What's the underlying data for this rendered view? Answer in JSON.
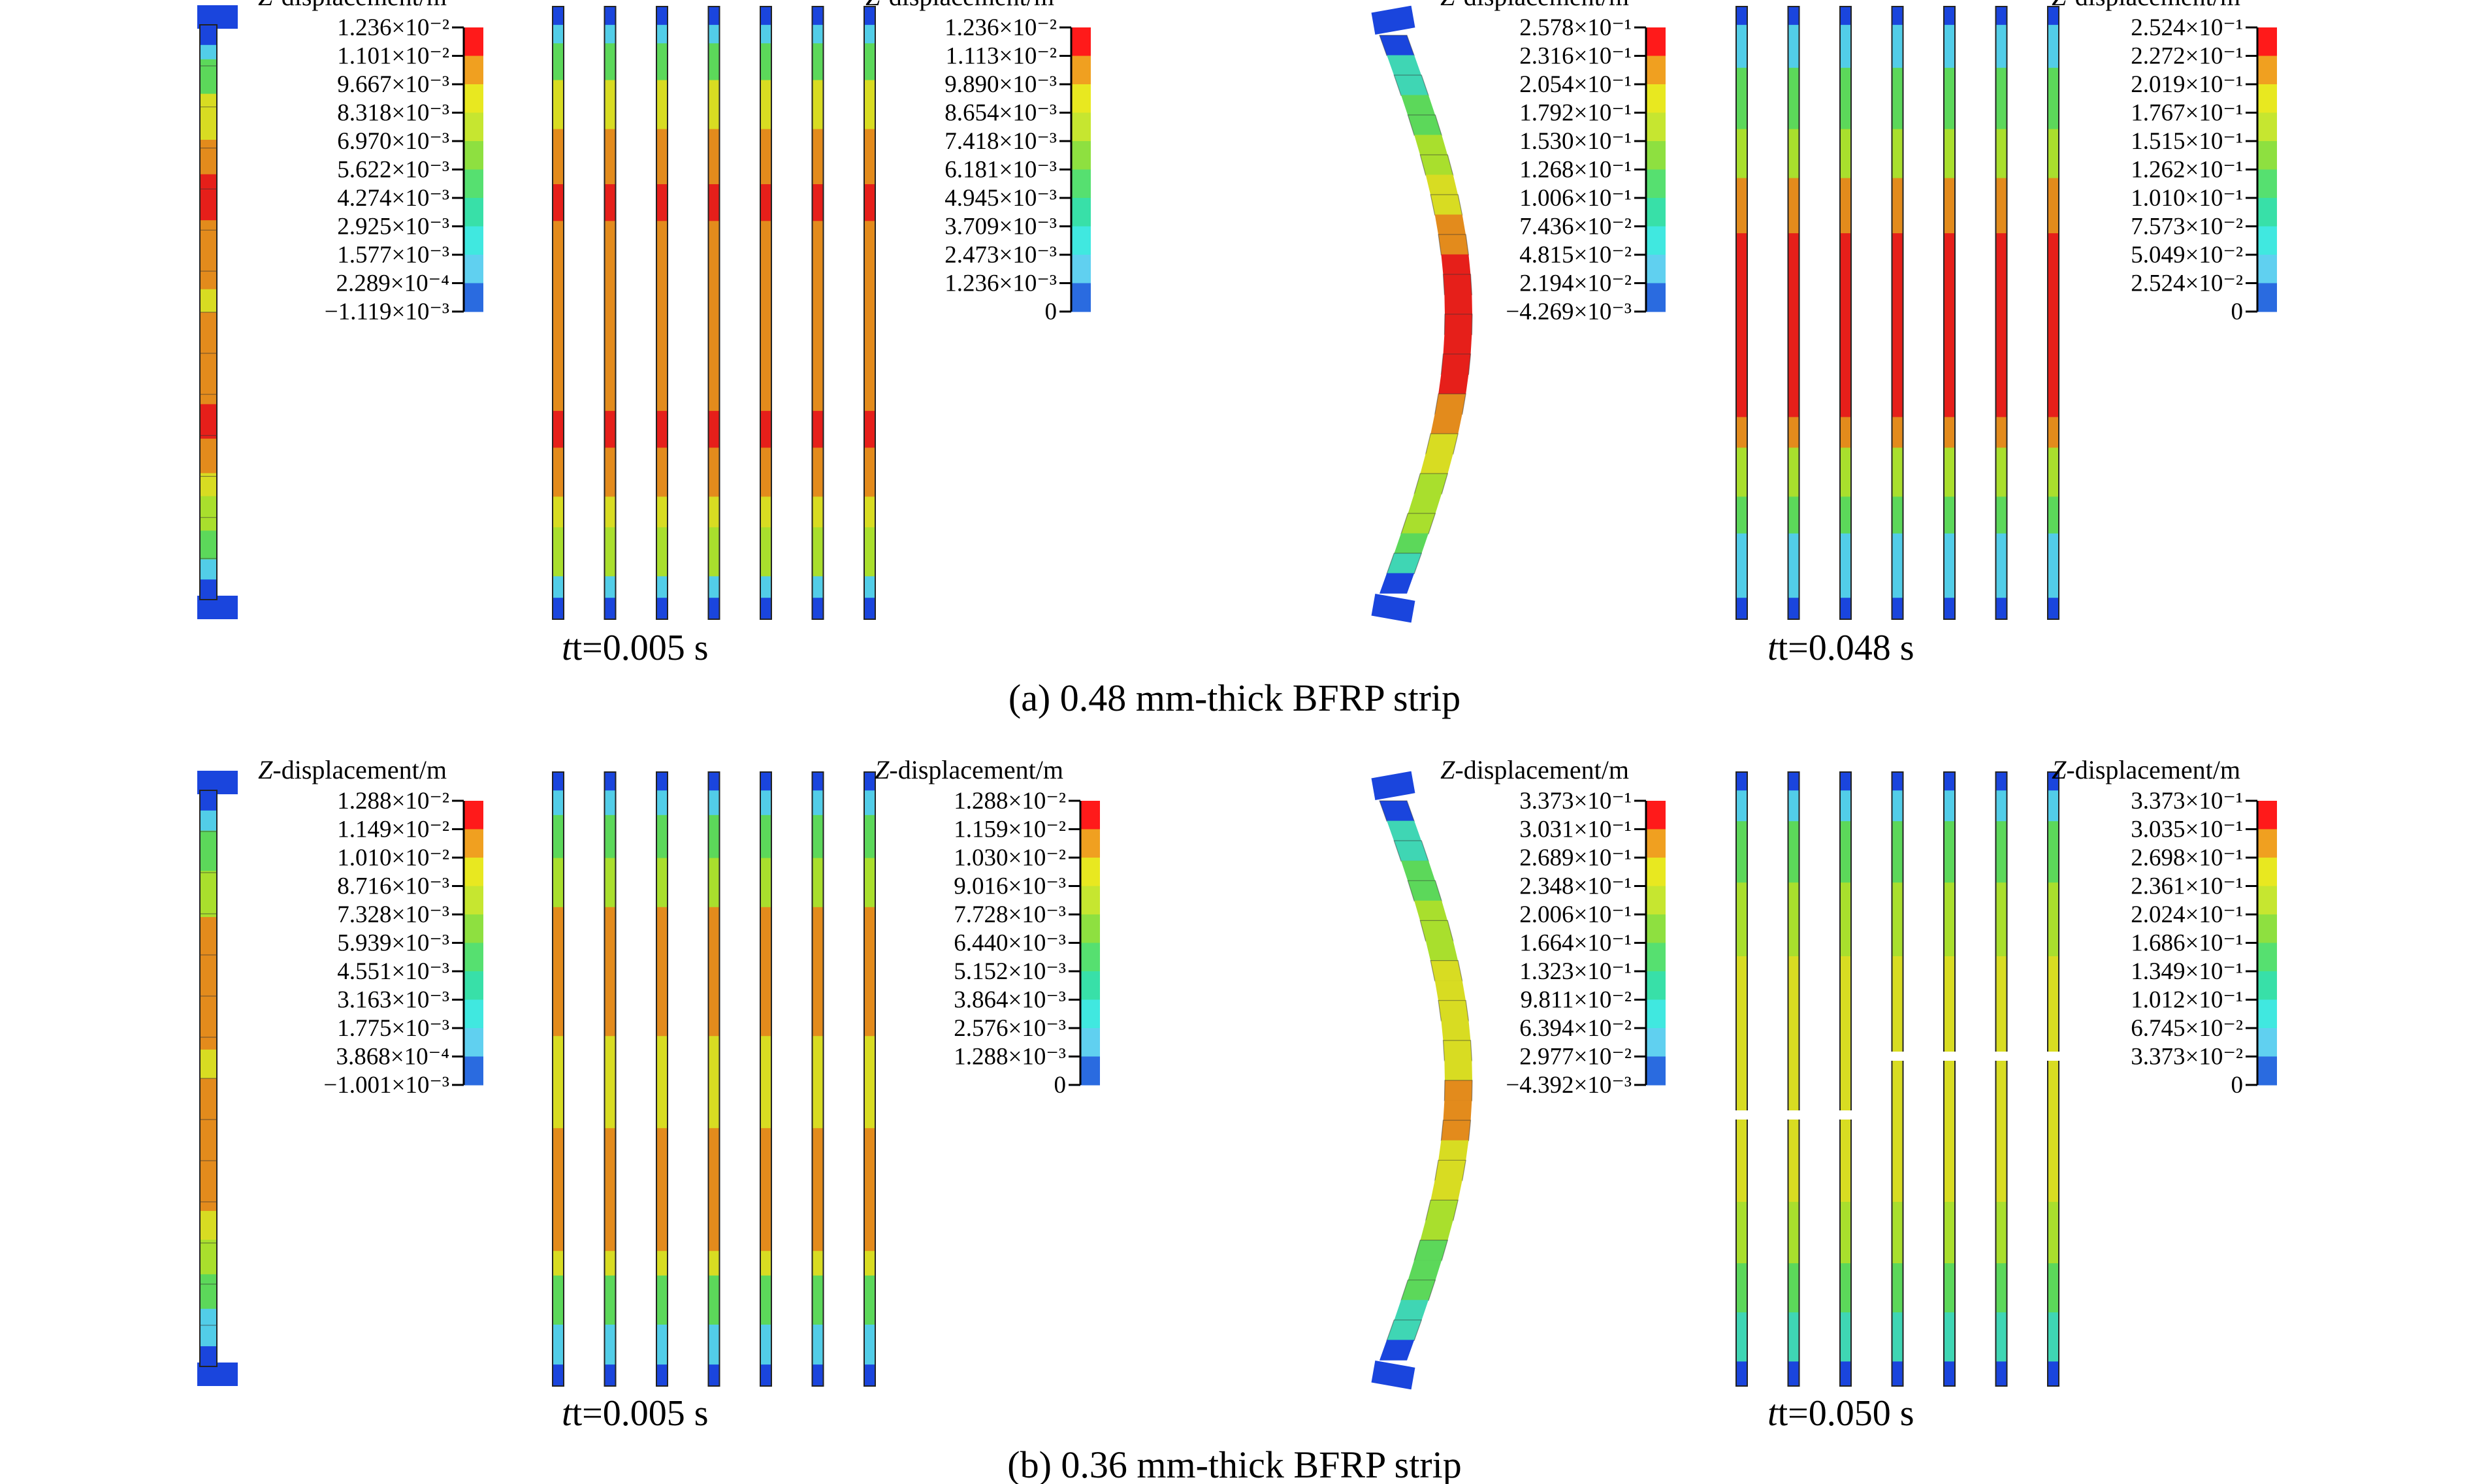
{
  "panels": [
    {
      "caption": "(a) 0.48 mm-thick BFRP strip",
      "states": [
        {
          "time_label": "t=0.005 s",
          "legends": [
            {
              "title": "Z-displacement/m",
              "values": [
                "1.236×10⁻²",
                "1.101×10⁻²",
                "9.667×10⁻³",
                "8.318×10⁻³",
                "6.970×10⁻³",
                "5.622×10⁻³",
                "4.274×10⁻³",
                "2.925×10⁻³",
                "1.577×10⁻³",
                "2.289×10⁻⁴",
                "−1.119×10⁻³"
              ]
            },
            {
              "title": "Z-displacement/m",
              "values": [
                "1.236×10⁻²",
                "1.113×10⁻²",
                "9.890×10⁻³",
                "8.654×10⁻³",
                "7.418×10⁻³",
                "6.181×10⁻³",
                "4.945×10⁻³",
                "3.709×10⁻³",
                "2.473×10⁻³",
                "1.236×10⁻³",
                "0"
              ]
            }
          ]
        },
        {
          "time_label": "t=0.048 s",
          "legends": [
            {
              "title": "Z-displacement/m",
              "values": [
                "2.578×10⁻¹",
                "2.316×10⁻¹",
                "2.054×10⁻¹",
                "1.792×10⁻¹",
                "1.530×10⁻¹",
                "1.268×10⁻¹",
                "1.006×10⁻¹",
                "7.436×10⁻²",
                "4.815×10⁻²",
                "2.194×10⁻²",
                "−4.269×10⁻³"
              ]
            },
            {
              "title": "Z-displacement/m",
              "values": [
                "2.524×10⁻¹",
                "2.272×10⁻¹",
                "2.019×10⁻¹",
                "1.767×10⁻¹",
                "1.515×10⁻¹",
                "1.262×10⁻¹",
                "1.010×10⁻¹",
                "7.573×10⁻²",
                "5.049×10⁻²",
                "2.524×10⁻²",
                "0"
              ]
            }
          ]
        }
      ]
    },
    {
      "caption": "(b) 0.36 mm-thick BFRP strip",
      "states": [
        {
          "time_label": "t=0.005 s",
          "legends": [
            {
              "title": "Z-displacement/m",
              "values": [
                "1.288×10⁻²",
                "1.149×10⁻²",
                "1.010×10⁻²",
                "8.716×10⁻³",
                "7.328×10⁻³",
                "5.939×10⁻³",
                "4.551×10⁻³",
                "3.163×10⁻³",
                "1.775×10⁻³",
                "3.868×10⁻⁴",
                "−1.001×10⁻³"
              ]
            },
            {
              "title": "Z-displacement/m",
              "values": [
                "1.288×10⁻²",
                "1.159×10⁻²",
                "1.030×10⁻²",
                "9.016×10⁻³",
                "7.728×10⁻³",
                "6.440×10⁻³",
                "5.152×10⁻³",
                "3.864×10⁻³",
                "2.576×10⁻³",
                "1.288×10⁻³",
                "0"
              ]
            }
          ]
        },
        {
          "time_label": "t=0.050 s",
          "legends": [
            {
              "title": "Z-displacement/m",
              "values": [
                "3.373×10⁻¹",
                "3.031×10⁻¹",
                "2.689×10⁻¹",
                "2.348×10⁻¹",
                "2.006×10⁻¹",
                "1.664×10⁻¹",
                "1.323×10⁻¹",
                "9.811×10⁻²",
                "6.394×10⁻²",
                "2.977×10⁻²",
                "−4.392×10⁻³"
              ]
            },
            {
              "title": "Z-displacement/m",
              "values": [
                "3.373×10⁻¹",
                "3.035×10⁻¹",
                "2.698×10⁻¹",
                "2.361×10⁻¹",
                "2.024×10⁻¹",
                "1.686×10⁻¹",
                "1.349×10⁻¹",
                "1.012×10⁻¹",
                "6.745×10⁻²",
                "3.373×10⁻²",
                "0"
              ]
            }
          ]
        }
      ]
    }
  ],
  "colormap": [
    "#ff1a1a",
    "#f0a020",
    "#e8e820",
    "#c6e630",
    "#8ee040",
    "#56e070",
    "#38e0a8",
    "#40e8e0",
    "#60d0f0",
    "#2a6be0",
    "#1a3ae0"
  ],
  "contour_colors": {
    "red": "#e61f1a",
    "orange": "#e38b1c",
    "yellow": "#d8dc22",
    "lime": "#a9df2d",
    "green": "#5cd85a",
    "teal": "#3fd6b4",
    "cyan": "#52cde8",
    "blue": "#1a45dd"
  }
}
